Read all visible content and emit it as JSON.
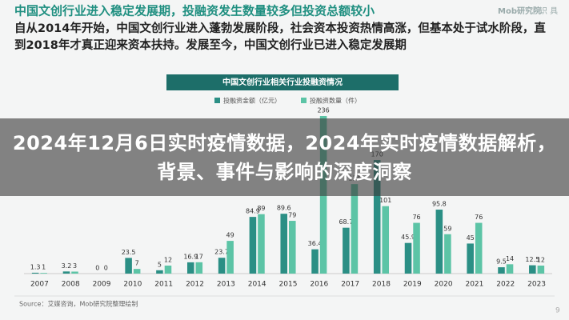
{
  "header": {
    "title": "中国文创行业进入稳定发展期，投融资发生数量较多但投资总额较小",
    "text": "自从2014年开始，中国文创行业进入蓬勃发展阶段，社会资本投资热情高涨，但基本处于试水阶段，直到2018年才真正迎来资本扶持。发展至今，中国文创行业已进入稳定发展期",
    "logo": "Mob研究院",
    "logo2": "识 具"
  },
  "chart_data": {
    "type": "bar",
    "title": "中国文创行业相关行业投融资情况",
    "categories": [
      "2007",
      "2008",
      "2009",
      "2010",
      "2011",
      "2012",
      "2013",
      "2014",
      "2015",
      "2016",
      "2017",
      "2018",
      "2019",
      "2020",
      "2021",
      "2022",
      "2023"
    ],
    "series": [
      {
        "name": "投融资金额（亿元）",
        "color": "#2b8f85",
        "values": [
          1.3,
          3.2,
          0.0,
          23.5,
          5.0,
          16.9,
          23.7,
          84.9,
          89.6,
          36.4,
          68.7,
          170,
          45.9,
          95.8,
          45,
          9.5,
          12.5
        ]
      },
      {
        "name": "投融资数量（件）",
        "color": "#5cc4a6",
        "values": [
          1,
          3,
          0,
          7,
          12,
          17,
          49,
          89,
          79,
          236,
          134,
          101,
          76,
          59,
          76,
          14,
          12
        ]
      }
    ],
    "source": "Source：艾媒咨询，Mob研究院整理绘制",
    "page": "9"
  },
  "overlay_title": "2024年12月6日实时疫情数据，2024年实时疫情数据解析，背景、事件与影响的深度洞察"
}
